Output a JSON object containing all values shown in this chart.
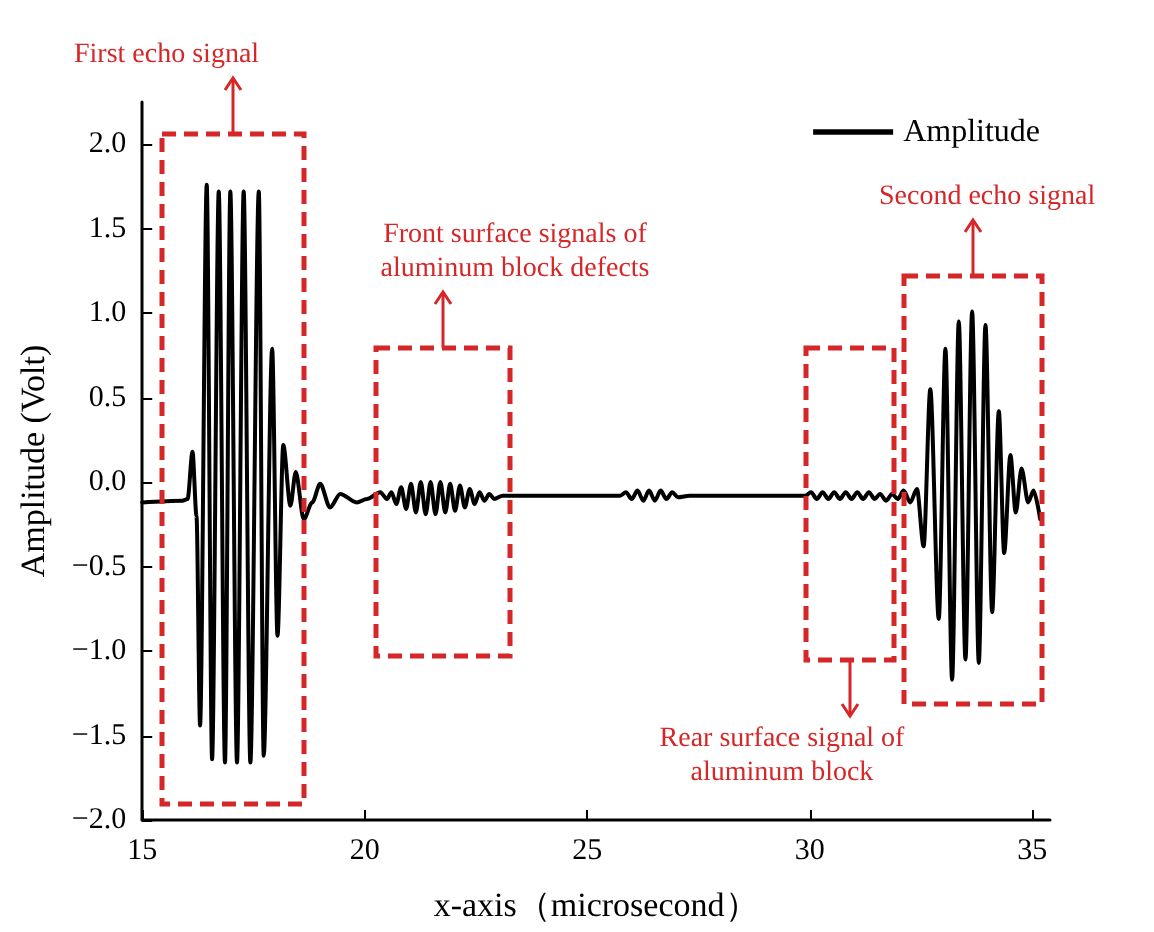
{
  "chart_data": {
    "type": "line",
    "xlabel": "x-axis（microsecond）",
    "ylabel": "Amplitude (Volt)",
    "xlim": [
      15,
      35.4
    ],
    "xticks": [
      15,
      20,
      25,
      30,
      35
    ],
    "ylim": [
      -2,
      2.25
    ],
    "yticks": [
      {
        "value": -2,
        "label": "−2.0"
      },
      {
        "value": -1.5,
        "label": "−1.5"
      },
      {
        "value": -1,
        "label": "−1.0"
      },
      {
        "value": -0.5,
        "label": "−0.5"
      },
      {
        "value": 0,
        "label": "0.0"
      },
      {
        "value": 0.5,
        "label": "0.5"
      },
      {
        "value": 1,
        "label": "1.0"
      },
      {
        "value": 1.5,
        "label": "1.5"
      },
      {
        "value": 2,
        "label": "2.0"
      }
    ],
    "legend": "top right",
    "marker": "none",
    "line_style": "solid",
    "series": [
      {
        "name": "Amplitude",
        "color": "#000000",
        "x": [
          15.0,
          15.9,
          16.02,
          16.13,
          16.22,
          16.3,
          16.45,
          16.57,
          16.72,
          16.86,
          16.98,
          17.13,
          17.28,
          17.43,
          17.62,
          17.73,
          17.92,
          18.04,
          18.17,
          18.33,
          18.45,
          18.63,
          18.82,
          19.0,
          19.22,
          19.45,
          19.82,
          20.05,
          20.35,
          20.5,
          20.6,
          20.71,
          20.82,
          20.93,
          21.04,
          21.15,
          21.26,
          21.37,
          21.48,
          21.59,
          21.7,
          21.81,
          21.92,
          22.03,
          22.14,
          22.25,
          22.36,
          22.47,
          22.58,
          22.69,
          22.8,
          22.91,
          23.1,
          24.0,
          25.0,
          25.74,
          25.87,
          26.0,
          26.13,
          26.26,
          26.39,
          26.52,
          26.65,
          26.78,
          26.91,
          27.04,
          27.3,
          28.5,
          29.5,
          29.9,
          30.03,
          30.16,
          30.29,
          30.42,
          30.55,
          30.68,
          30.81,
          30.94,
          31.07,
          31.2,
          31.33,
          31.46,
          31.58,
          31.72,
          31.85,
          31.98,
          32.11,
          32.26,
          32.41,
          32.56,
          32.71,
          32.9,
          33.05,
          33.2,
          33.35,
          33.5,
          33.65,
          33.8,
          33.95,
          34.1,
          34.25,
          34.37,
          34.51,
          34.63,
          34.76,
          34.91,
          35.03,
          35.18
        ],
        "values": [
          -0.12,
          -0.11,
          -0.1,
          0.18,
          -0.2,
          -1.44,
          1.76,
          -1.64,
          1.72,
          -1.66,
          1.72,
          -1.66,
          1.72,
          -1.66,
          1.72,
          -1.62,
          0.79,
          -0.91,
          0.22,
          -0.14,
          0.06,
          -0.22,
          -0.12,
          -0.01,
          -0.15,
          -0.07,
          -0.12,
          -0.1,
          -0.06,
          -0.1,
          -0.06,
          -0.13,
          -0.03,
          -0.16,
          -0.01,
          -0.18,
          0.0,
          -0.19,
          0.0,
          -0.19,
          0.0,
          -0.18,
          -0.01,
          -0.17,
          -0.02,
          -0.15,
          -0.04,
          -0.13,
          -0.06,
          -0.11,
          -0.07,
          -0.1,
          -0.08,
          -0.08,
          -0.08,
          -0.08,
          -0.06,
          -0.1,
          -0.05,
          -0.11,
          -0.05,
          -0.11,
          -0.05,
          -0.1,
          -0.06,
          -0.09,
          -0.08,
          -0.08,
          -0.08,
          -0.08,
          -0.06,
          -0.1,
          -0.06,
          -0.1,
          -0.06,
          -0.1,
          -0.06,
          -0.1,
          -0.06,
          -0.1,
          -0.06,
          -0.1,
          -0.07,
          -0.11,
          -0.07,
          -0.1,
          -0.05,
          -0.12,
          -0.04,
          -0.38,
          0.55,
          -0.81,
          0.79,
          -1.17,
          0.95,
          -1.05,
          1.01,
          -1.07,
          0.93,
          -0.77,
          0.42,
          -0.42,
          0.16,
          -0.18,
          0.08,
          -0.12,
          -0.05,
          -0.22
        ]
      }
    ],
    "annotations": [
      "First echo signal",
      "Front surface signals of aluminum block defects",
      "Rear surface signal of aluminum block",
      "Second echo signal"
    ]
  }
}
